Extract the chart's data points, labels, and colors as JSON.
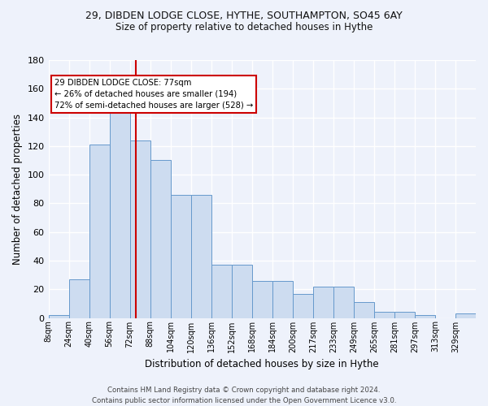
{
  "title_line1": "29, DIBDEN LODGE CLOSE, HYTHE, SOUTHAMPTON, SO45 6AY",
  "title_line2": "Size of property relative to detached houses in Hythe",
  "xlabel": "Distribution of detached houses by size in Hythe",
  "ylabel": "Number of detached properties",
  "bin_labels": [
    "8sqm",
    "24sqm",
    "40sqm",
    "56sqm",
    "72sqm",
    "88sqm",
    "104sqm",
    "120sqm",
    "136sqm",
    "152sqm",
    "168sqm",
    "184sqm",
    "200sqm",
    "217sqm",
    "233sqm",
    "249sqm",
    "265sqm",
    "281sqm",
    "297sqm",
    "313sqm",
    "329sqm"
  ],
  "bar_heights": [
    2,
    27,
    121,
    144,
    124,
    110,
    86,
    86,
    37,
    37,
    26,
    26,
    17,
    22,
    22,
    11,
    4,
    4,
    2,
    0,
    3
  ],
  "bar_color": "#cddcf0",
  "bar_edge_color": "#6699cc",
  "vline_x": 4,
  "vline_color": "#cc0000",
  "ylim": [
    0,
    180
  ],
  "yticks": [
    0,
    20,
    40,
    60,
    80,
    100,
    120,
    140,
    160,
    180
  ],
  "annotation_text": "29 DIBDEN LODGE CLOSE: 77sqm\n← 26% of detached houses are smaller (194)\n72% of semi-detached houses are larger (528) →",
  "annotation_box_color": "#ffffff",
  "annotation_border_color": "#cc0000",
  "footer_text": "Contains HM Land Registry data © Crown copyright and database right 2024.\nContains public sector information licensed under the Open Government Licence v3.0.",
  "background_color": "#eef2fb",
  "grid_color": "#ffffff",
  "n_bins": 21,
  "bin_width": 1
}
